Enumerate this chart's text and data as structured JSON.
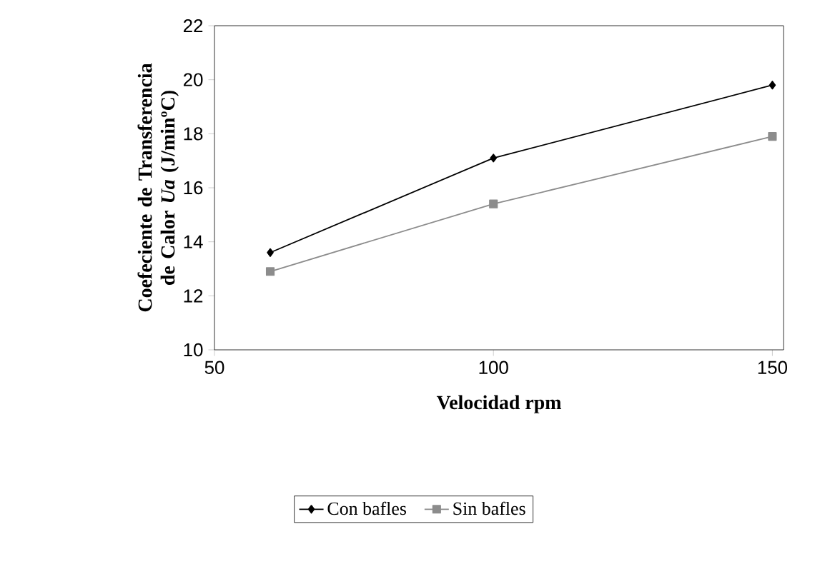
{
  "chart_data": {
    "type": "line",
    "xlabel": "Velocidad rpm",
    "ylabel": "Coefeciente de Transferencia de Calor *Ua* (J/minºC)",
    "x": [
      60,
      100,
      150
    ],
    "series": [
      {
        "name": "Con bafles",
        "color": "#000000",
        "marker": "diamond",
        "values": [
          13.6,
          17.1,
          19.8
        ]
      },
      {
        "name": "Sin bafles",
        "color": "#8c8c8c",
        "marker": "square",
        "values": [
          12.9,
          15.4,
          17.9
        ]
      }
    ],
    "xlim": [
      50,
      152
    ],
    "xticks": [
      50,
      100,
      150
    ],
    "ylim": [
      10,
      22
    ],
    "yticks": [
      10,
      12,
      14,
      16,
      18,
      20,
      22
    ],
    "legend": "bottom",
    "line_style": "solid"
  }
}
